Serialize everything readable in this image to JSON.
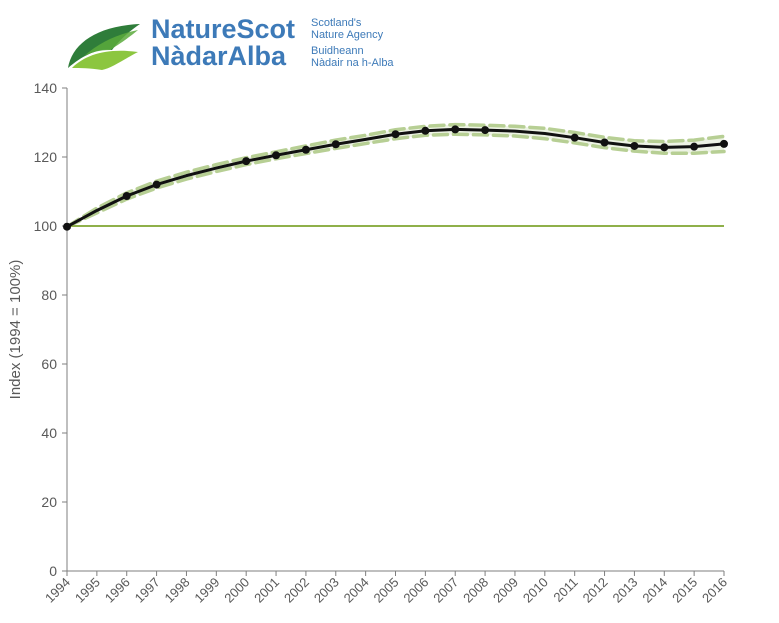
{
  "header": {
    "brand_en": "NatureScot",
    "brand_gd": "NàdarAlba",
    "tagline_en_1": "Scotland's",
    "tagline_en_2": "Nature Agency",
    "tagline_gd_1": "Buidheann",
    "tagline_gd_2": "Nàdair na h-Alba",
    "colors": {
      "brand_blue": "#3d7ab8",
      "leaf_green": "#8cc63f",
      "leaf_dark": "#2f7d3a"
    }
  },
  "chart_data": {
    "type": "line",
    "title": "",
    "xlabel": "",
    "ylabel": "Index (1994 = 100%)",
    "ylim": [
      0,
      140
    ],
    "yticks": [
      0,
      20,
      40,
      60,
      80,
      100,
      120,
      140
    ],
    "categories": [
      "1994",
      "1995",
      "1996",
      "1997",
      "1998",
      "1999",
      "2000",
      "2001",
      "2002",
      "2003",
      "2004",
      "2005",
      "2006",
      "2007",
      "2008",
      "2009",
      "2010",
      "2011",
      "2012",
      "2013",
      "2014",
      "2015",
      "2016"
    ],
    "series": [
      {
        "values": [
          99.8,
          104.5,
          108.7,
          112.0,
          114.6,
          116.8,
          118.8,
          120.5,
          122.1,
          123.7,
          125.1,
          126.6,
          127.6,
          128.0,
          127.8,
          127.5,
          126.8,
          125.6,
          124.2,
          123.2,
          122.8,
          123.0,
          123.8
        ],
        "color": "#111111",
        "markers": [
          true,
          false,
          true,
          true,
          false,
          false,
          true,
          true,
          true,
          true,
          false,
          true,
          true,
          true,
          true,
          false,
          false,
          true,
          true,
          true,
          true,
          true,
          true
        ]
      }
    ],
    "confidence_band": {
      "lower": [
        99.8,
        103.8,
        107.8,
        111.0,
        113.6,
        115.8,
        117.8,
        119.5,
        121.0,
        122.5,
        123.9,
        125.3,
        126.3,
        126.6,
        126.4,
        126.1,
        125.3,
        124.1,
        122.7,
        121.7,
        121.1,
        121.1,
        121.6
      ],
      "upper": [
        99.8,
        105.2,
        109.6,
        113.0,
        115.6,
        117.8,
        119.8,
        121.5,
        123.2,
        124.9,
        126.3,
        127.9,
        128.9,
        129.4,
        129.2,
        128.9,
        128.3,
        127.1,
        125.7,
        124.7,
        124.5,
        124.9,
        126.0
      ],
      "color": "#b7cf94"
    },
    "reference_line": {
      "value": 100,
      "color": "#8fb04a"
    },
    "grid": false,
    "legend": "none"
  }
}
